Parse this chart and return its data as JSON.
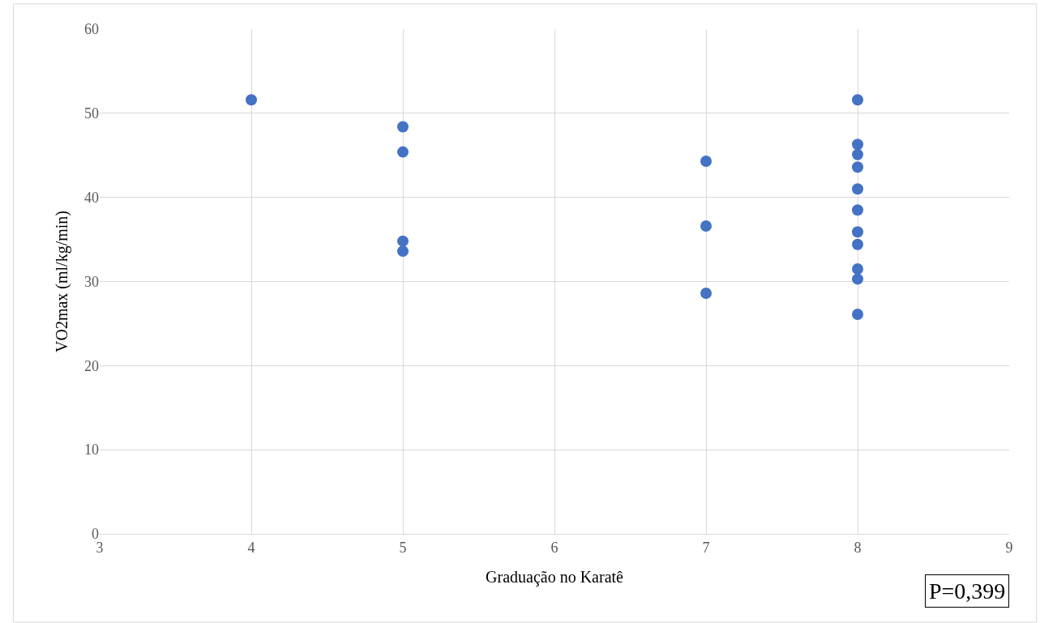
{
  "chart_data": {
    "type": "scatter",
    "xlabel": "Graduação no Karatê",
    "ylabel": "VO2max (ml/kg/min)",
    "annotations": [
      "P=0,399"
    ],
    "x": [
      4,
      5,
      5,
      5,
      5,
      7,
      7,
      7,
      8,
      8,
      8,
      8,
      8,
      8,
      8,
      8,
      8,
      8,
      8
    ],
    "series": [
      {
        "color": "#4472c4",
        "values": [
          51.6,
          48.4,
          45.4,
          34.8,
          33.6,
          44.3,
          36.6,
          28.6,
          51.6,
          46.3,
          45.1,
          43.6,
          41.0,
          38.5,
          35.9,
          34.4,
          31.5,
          30.3,
          26.1
        ]
      }
    ],
    "xlim": [
      3,
      9
    ],
    "xticks": [
      3,
      4,
      5,
      6,
      7,
      8,
      9
    ],
    "ylim": [
      0,
      60
    ],
    "yticks": [
      0,
      10,
      20,
      30,
      40,
      50,
      60
    ],
    "grid": true,
    "marker": "circle"
  }
}
